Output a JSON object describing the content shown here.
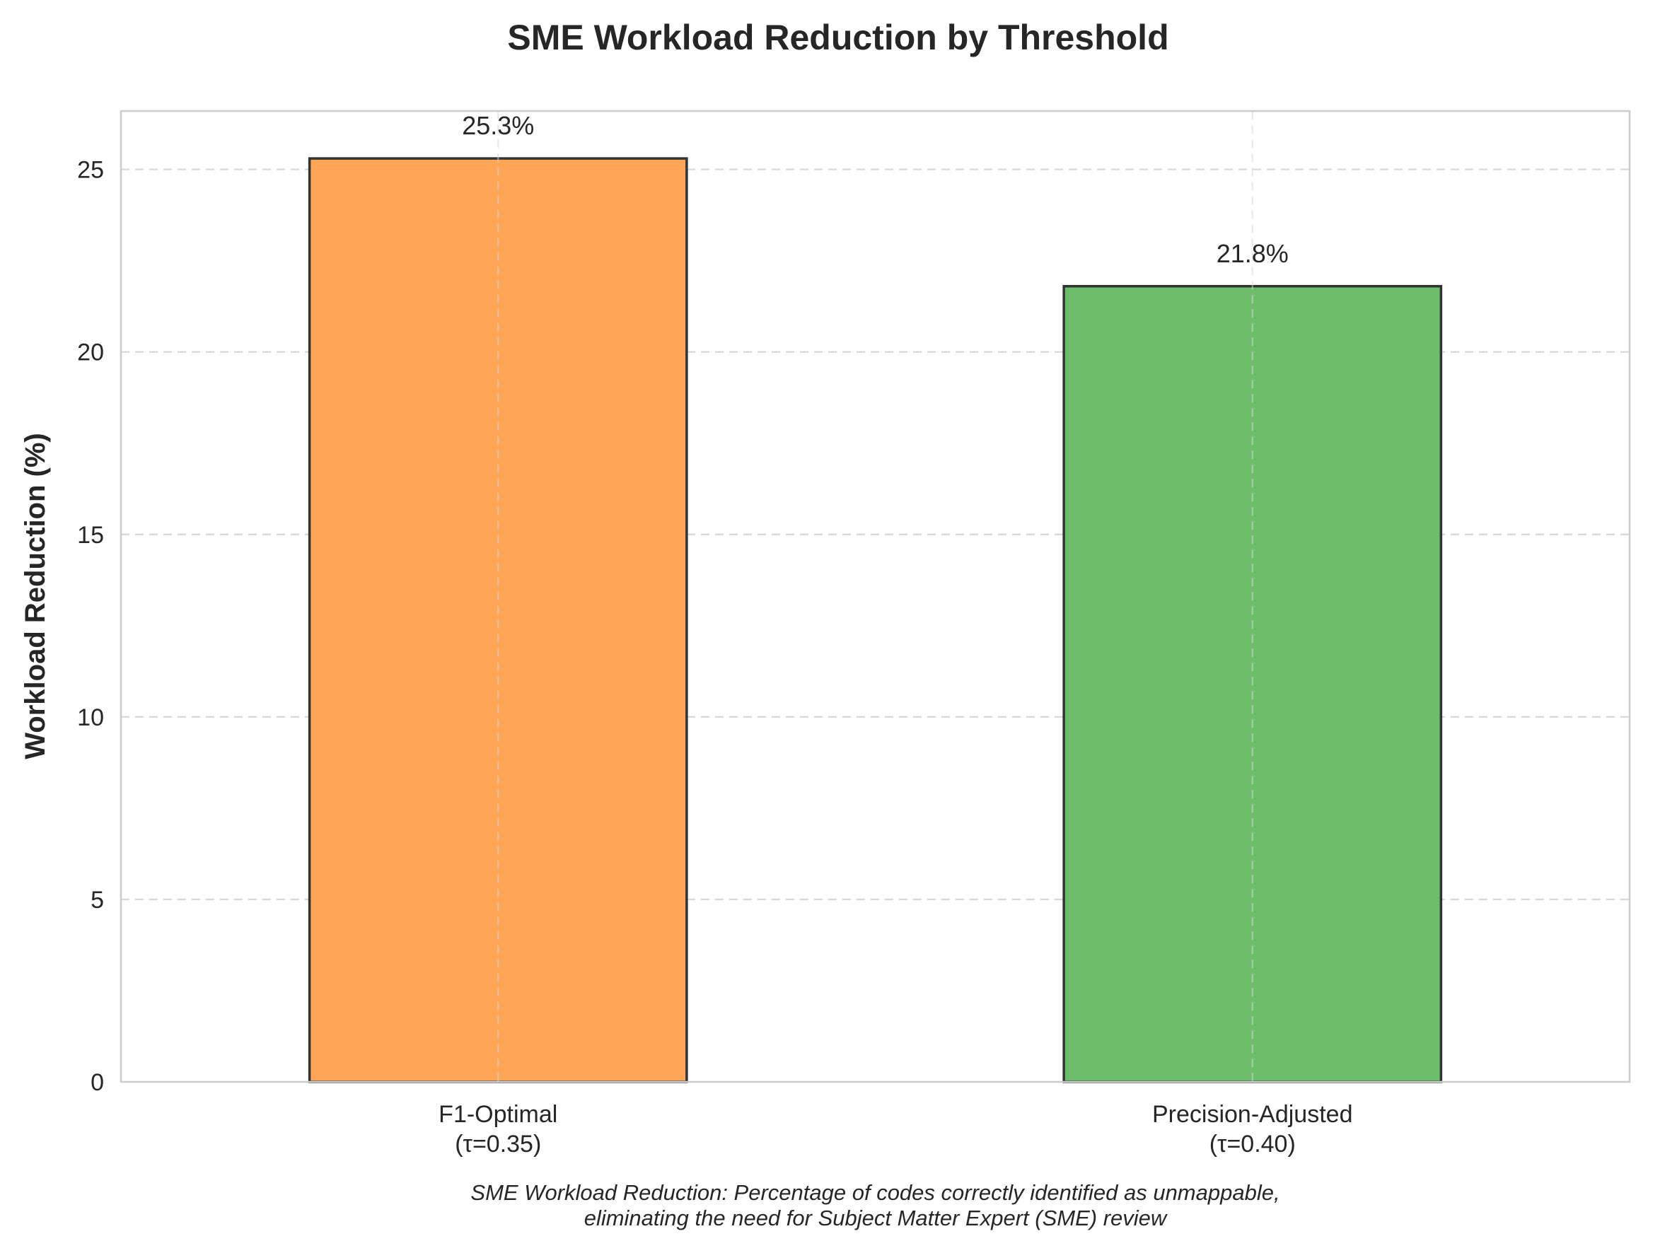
{
  "chart_data": {
    "type": "bar",
    "title": "SME Workload Reduction by Threshold",
    "xlabel": "",
    "ylabel": "Workload Reduction (%)",
    "categories": [
      [
        "F1-Optimal",
        "(τ=0.35)"
      ],
      [
        "Precision-Adjusted",
        "(τ=0.40)"
      ]
    ],
    "values": [
      25.3,
      21.8
    ],
    "data_labels": [
      "25.3%",
      "21.8%"
    ],
    "colors": [
      "#ffa556",
      "#6cbe6b"
    ],
    "edge_color": "#333333",
    "ylim": [
      0,
      26.6
    ],
    "yticks": [
      0,
      5,
      10,
      15,
      20,
      25
    ],
    "grid": true,
    "grid_style": "dashed",
    "legend": "none",
    "caption": [
      "SME Workload Reduction: Percentage of codes correctly identified as unmappable,",
      "eliminating the need for Subject Matter Expert (SME) review"
    ]
  }
}
